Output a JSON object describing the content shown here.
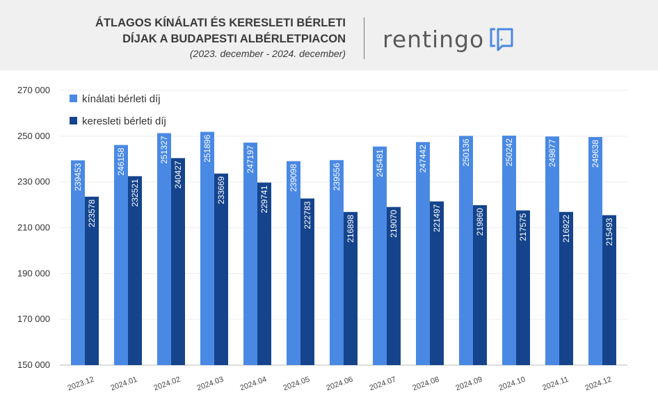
{
  "header": {
    "title_line1": "ÁTLAGOS KÍNÁLATI ÉS KERESLETI BÉRLETI",
    "title_line2": "DÍJAK A BUDAPESTI ALBÉRLETPIACON",
    "subtitle": "(2023. december - 2024. december)",
    "logo_text": "rentingo"
  },
  "chart_data": {
    "type": "bar",
    "title": "ÁTLAGOS KÍNÁLATI ÉS KERESLETI BÉRLETI DÍJAK A BUDAPESTI ALBÉRLETPIACON",
    "xlabel": "",
    "ylabel": "",
    "ylim": [
      150000,
      270000
    ],
    "yticks": [
      "150 000",
      "170 000",
      "190 000",
      "210 000",
      "230 000",
      "250 000",
      "270 000"
    ],
    "ytick_values": [
      150000,
      170000,
      190000,
      210000,
      230000,
      250000,
      270000
    ],
    "grid": true,
    "legend_position": "top-left",
    "categories": [
      "2023.12",
      "2024.01",
      "2024.02",
      "2024.03",
      "2024.04",
      "2024.05",
      "2024.06",
      "2024.07",
      "2024.08",
      "2024.09",
      "2024.10",
      "2024.11",
      "2024.12"
    ],
    "series": [
      {
        "name": "kínálati bérleti díj",
        "color": "#4a89e3",
        "values": [
          239453,
          246158,
          251327,
          251896,
          247197,
          239098,
          239556,
          245481,
          247442,
          250136,
          250242,
          249877,
          249638
        ]
      },
      {
        "name": "keresleti bérleti díj",
        "color": "#15448c",
        "values": [
          223578,
          232521,
          240427,
          233669,
          229741,
          222783,
          216898,
          219070,
          221497,
          219860,
          217575,
          216922,
          215493
        ]
      }
    ]
  }
}
